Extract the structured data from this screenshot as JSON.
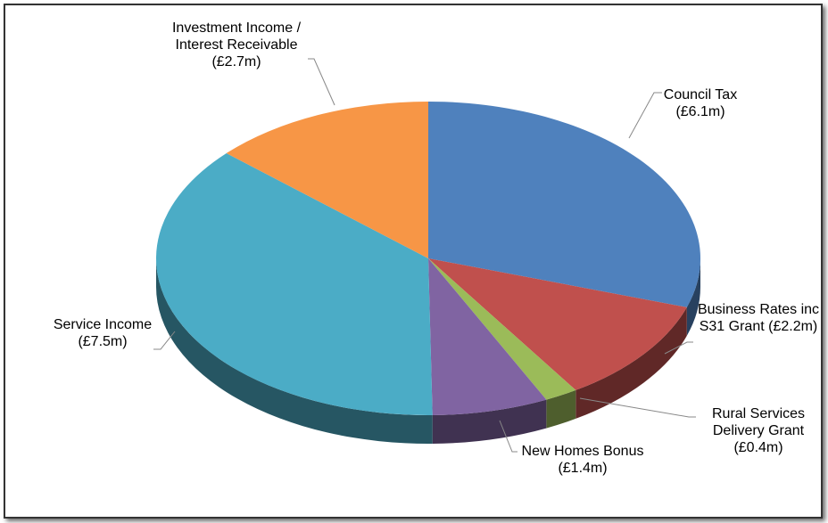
{
  "chart_data": {
    "type": "pie",
    "categories": [
      "Council Tax",
      "Business Rates inc S31 Grant",
      "Rural Services Delivery Grant",
      "New Homes Bonus",
      "Service Income",
      "Investment Income / Interest Receivable"
    ],
    "values": [
      6.1,
      2.2,
      0.4,
      1.4,
      7.5,
      2.7
    ],
    "value_labels": [
      "(£6.1m)",
      "(£2.2m)",
      "(£0.4m)",
      "(£1.4m)",
      "(£7.5m)",
      "(£2.7m)"
    ],
    "colors": [
      "#4f81bd",
      "#c0504d",
      "#9bbb59",
      "#8064a2",
      "#4bacc6",
      "#f79646"
    ]
  }
}
